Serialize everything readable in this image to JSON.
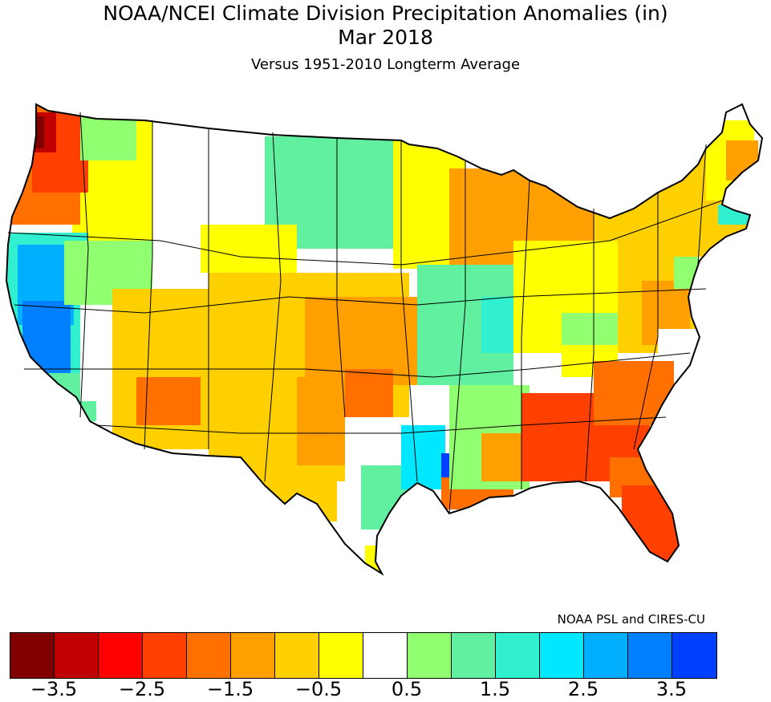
{
  "title_line1": "NOAA/NCEI Climate Division Precipitation Anomalies (in)",
  "title_line2": "Mar 2018",
  "subtitle": "Versus 1951-2010 Longterm Average",
  "credit": "NOAA PSL and CIRES-CU",
  "colorbar": {
    "bins": [
      {
        "range": "< -3.5",
        "color": "#800000"
      },
      {
        "range": "-3.5 to -3.0",
        "color": "#c00000"
      },
      {
        "range": "-3.0 to -2.5",
        "color": "#ff0000"
      },
      {
        "range": "-2.5 to -2.0",
        "color": "#ff4000"
      },
      {
        "range": "-2.0 to -1.5",
        "color": "#ff7000"
      },
      {
        "range": "-1.5 to -1.0",
        "color": "#ffa000"
      },
      {
        "range": "-1.0 to -0.5",
        "color": "#ffd000"
      },
      {
        "range": "-0.5 to 0.0",
        "color": "#ffff00"
      },
      {
        "range": "0.0 to 0.5",
        "color": "#ffffff"
      },
      {
        "range": "0.5 to 1.0",
        "color": "#90ff70"
      },
      {
        "range": "1.0 to 1.5",
        "color": "#60f0a0"
      },
      {
        "range": "1.5 to 2.0",
        "color": "#30f0d0"
      },
      {
        "range": "2.0 to 2.5",
        "color": "#00e8ff"
      },
      {
        "range": "2.5 to 3.0",
        "color": "#00b0ff"
      },
      {
        "range": "3.0 to 3.5",
        "color": "#0080ff"
      },
      {
        "range": "> 3.5",
        "color": "#0040ff"
      }
    ],
    "tick_labels": [
      "-3.5",
      "-2.5",
      "-1.5",
      "-0.5",
      "0.5",
      "1.5",
      "2.5",
      "3.5"
    ]
  },
  "map": {
    "region": "Contiguous United States climate divisions",
    "variable": "Precipitation anomaly (in)",
    "outline_color": "#000000"
  }
}
